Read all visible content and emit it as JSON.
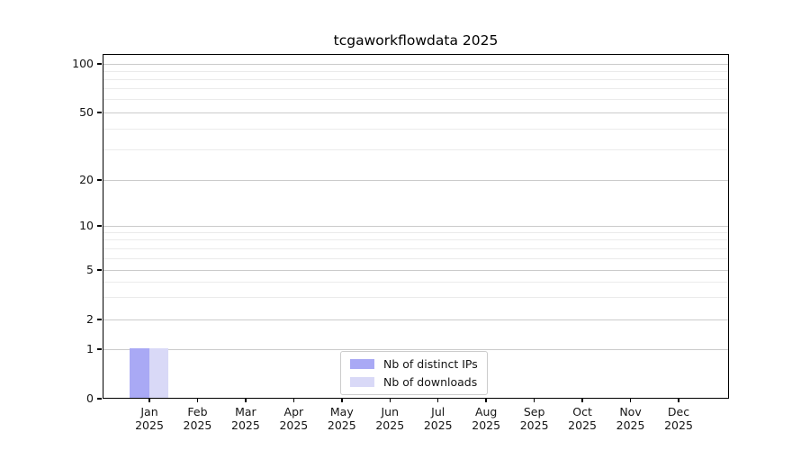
{
  "title": "tcgaworkflowdata 2025",
  "chart_data": {
    "type": "bar",
    "categories": [
      {
        "month": "Jan",
        "year": "2025"
      },
      {
        "month": "Feb",
        "year": "2025"
      },
      {
        "month": "Mar",
        "year": "2025"
      },
      {
        "month": "Apr",
        "year": "2025"
      },
      {
        "month": "May",
        "year": "2025"
      },
      {
        "month": "Jun",
        "year": "2025"
      },
      {
        "month": "Jul",
        "year": "2025"
      },
      {
        "month": "Aug",
        "year": "2025"
      },
      {
        "month": "Sep",
        "year": "2025"
      },
      {
        "month": "Oct",
        "year": "2025"
      },
      {
        "month": "Nov",
        "year": "2025"
      },
      {
        "month": "Dec",
        "year": "2025"
      }
    ],
    "series": [
      {
        "name": "Nb of distinct IPs",
        "color": "#a9a9f5",
        "values": [
          1,
          0,
          0,
          0,
          0,
          0,
          0,
          0,
          0,
          0,
          0,
          0
        ]
      },
      {
        "name": "Nb of downloads",
        "color": "#d9d9f7",
        "values": [
          1,
          0,
          0,
          0,
          0,
          0,
          0,
          0,
          0,
          0,
          0,
          0
        ]
      }
    ],
    "title": "tcgaworkflowdata 2025",
    "xlabel": "",
    "ylabel": "",
    "yscale": "symlog-like",
    "ylim": [
      0,
      110
    ],
    "yticks": [
      0,
      1,
      2,
      5,
      10,
      20,
      50,
      100
    ],
    "minor_yticks": [
      3,
      4,
      6,
      7,
      8,
      9,
      30,
      40,
      60,
      70,
      80,
      90
    ],
    "grid": "horizontal",
    "legend_position": "lower center",
    "spine_color": "#000000",
    "major_grid_color": "#cbcbcb",
    "minor_grid_color": "#ebebeb"
  }
}
